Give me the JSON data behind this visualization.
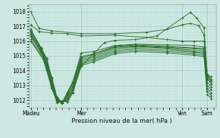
{
  "xlabel": "Pression niveau de la mer( hPa )",
  "xtick_labels": [
    "Màdeu",
    "Mer",
    "Ven",
    "Sam"
  ],
  "xtick_positions": [
    0,
    48,
    144,
    168
  ],
  "ylim": [
    1011.5,
    1018.5
  ],
  "yticks": [
    1012,
    1013,
    1014,
    1015,
    1016,
    1017,
    1018
  ],
  "xlim": [
    -2,
    176
  ],
  "bg_color": "#cce8e0",
  "grid_major_color": "#aacccc",
  "grid_minor_color": "#bbdddd",
  "line_color": "#2d6e2d",
  "series": [
    [
      0,
      1018.0,
      8,
      1016.85,
      20,
      1016.7,
      48,
      1016.5,
      80,
      1016.5,
      110,
      1016.6,
      130,
      1016.8,
      144,
      1017.1,
      152,
      1017.2,
      160,
      1017.05,
      165,
      1016.4,
      168,
      1013.8,
      172,
      1013.3
    ],
    [
      0,
      1017.1,
      8,
      1016.65,
      20,
      1016.55,
      35,
      1016.5,
      48,
      1016.35,
      80,
      1016.4,
      110,
      1016.25,
      130,
      1016.1,
      144,
      1016.0,
      155,
      1016.0,
      165,
      1016.0,
      168,
      1013.7,
      172,
      1013.4
    ],
    [
      0,
      1016.8,
      10,
      1015.5,
      15,
      1014.8,
      20,
      1013.5,
      25,
      1012.1,
      30,
      1011.8,
      35,
      1012.5,
      40,
      1013.2,
      48,
      1015.2,
      60,
      1015.3,
      80,
      1015.7,
      100,
      1015.8,
      130,
      1015.75,
      155,
      1015.7,
      165,
      1015.6,
      168,
      1013.6,
      172,
      1013.3
    ],
    [
      0,
      1016.75,
      10,
      1015.55,
      15,
      1014.85,
      20,
      1013.55,
      25,
      1012.2,
      30,
      1011.85,
      35,
      1012.55,
      40,
      1013.25,
      48,
      1014.95,
      60,
      1015.15,
      80,
      1015.65,
      100,
      1015.75,
      130,
      1015.65,
      155,
      1015.55,
      165,
      1015.5,
      168,
      1013.5,
      172,
      1013.2
    ],
    [
      0,
      1016.7,
      10,
      1015.45,
      15,
      1014.7,
      20,
      1013.45,
      25,
      1012.15,
      30,
      1011.82,
      35,
      1012.45,
      40,
      1013.1,
      48,
      1014.85,
      60,
      1015.1,
      80,
      1015.6,
      100,
      1015.7,
      130,
      1015.6,
      155,
      1015.5,
      165,
      1015.45,
      168,
      1013.4,
      172,
      1013.1
    ],
    [
      0,
      1016.6,
      10,
      1015.35,
      15,
      1014.6,
      20,
      1013.35,
      25,
      1012.1,
      30,
      1011.8,
      35,
      1012.35,
      40,
      1012.95,
      48,
      1014.75,
      60,
      1015.0,
      80,
      1015.55,
      100,
      1015.65,
      130,
      1015.55,
      155,
      1015.4,
      165,
      1015.35,
      168,
      1013.2,
      172,
      1012.9
    ],
    [
      0,
      1016.5,
      10,
      1015.25,
      15,
      1014.5,
      20,
      1013.2,
      25,
      1012.05,
      30,
      1011.82,
      35,
      1012.25,
      40,
      1012.85,
      48,
      1014.65,
      60,
      1014.9,
      80,
      1015.45,
      100,
      1015.6,
      130,
      1015.5,
      155,
      1015.3,
      165,
      1015.25,
      168,
      1013.0,
      172,
      1012.7
    ],
    [
      0,
      1016.4,
      12,
      1015.1,
      15,
      1014.4,
      20,
      1013.1,
      25,
      1012.0,
      30,
      1011.85,
      35,
      1012.15,
      40,
      1012.75,
      48,
      1014.55,
      60,
      1014.8,
      80,
      1015.35,
      100,
      1015.5,
      130,
      1015.4,
      155,
      1015.25,
      165,
      1015.15,
      168,
      1012.8,
      172,
      1012.5
    ],
    [
      0,
      1016.3,
      12,
      1014.95,
      15,
      1014.25,
      20,
      1013.0,
      25,
      1011.85,
      30,
      1011.88,
      35,
      1012.05,
      40,
      1012.65,
      48,
      1014.45,
      60,
      1014.7,
      80,
      1015.25,
      100,
      1015.4,
      130,
      1015.3,
      155,
      1015.15,
      165,
      1015.05,
      168,
      1012.6,
      172,
      1012.3
    ],
    [
      0,
      1016.1,
      12,
      1014.85,
      15,
      1014.15,
      20,
      1012.9,
      25,
      1011.88,
      30,
      1011.92,
      35,
      1011.95,
      40,
      1012.55,
      48,
      1014.35,
      60,
      1014.6,
      80,
      1015.15,
      100,
      1015.3,
      130,
      1015.2,
      155,
      1015.05,
      165,
      1014.95,
      168,
      1012.4,
      172,
      1012.1
    ],
    [
      0,
      1016.0,
      12,
      1014.75,
      15,
      1014.05,
      20,
      1012.8,
      25,
      1011.9,
      30,
      1011.95,
      35,
      1011.88,
      40,
      1012.5,
      48,
      1014.3,
      60,
      1015.15,
      70,
      1015.9,
      80,
      1016.05,
      100,
      1016.1,
      120,
      1016.35,
      144,
      1017.55,
      152,
      1017.95,
      158,
      1017.55,
      165,
      1016.9,
      168,
      1013.7,
      172,
      1013.6
    ]
  ]
}
